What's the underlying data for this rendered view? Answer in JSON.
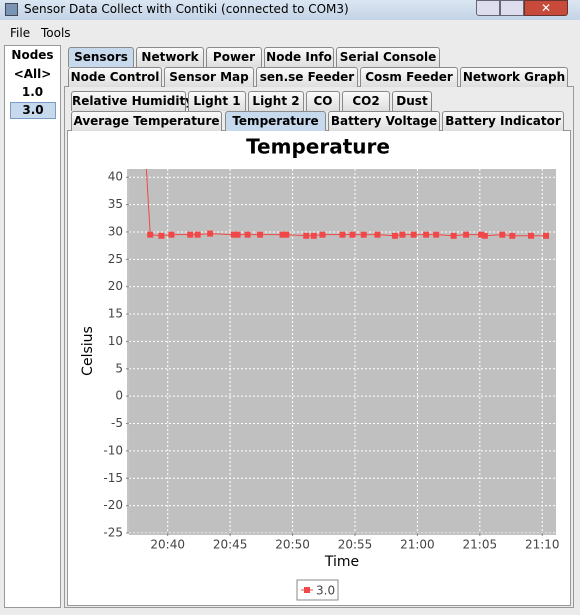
{
  "window": {
    "title": "Sensor Data Collect with Contiki (connected to COM3)"
  },
  "menu": [
    "File",
    "Tools"
  ],
  "nodes": {
    "header": "Nodes",
    "items": [
      "<All>",
      "1.0",
      "3.0"
    ]
  },
  "tabs": {
    "row1": [
      "Sensors",
      "Network",
      "Power",
      "Node Info",
      "Serial Console"
    ],
    "row2": [
      "Node Control",
      "Sensor Map",
      "sen.se Feeder",
      "Cosm Feeder",
      "Network Graph"
    ]
  },
  "subtabs": {
    "row1": [
      "Relative Humidity",
      "Light 1",
      "Light 2",
      "CO",
      "CO2",
      "Dust"
    ],
    "row2": [
      "Average Temperature",
      "Temperature",
      "Battery Voltage",
      "Battery Indicator"
    ]
  },
  "chart_data": {
    "type": "line",
    "title": "Temperature",
    "x_label": "Time",
    "y_label": "Celsius",
    "x": [
      1238.2,
      1238.6,
      1239.5,
      1240.3,
      1241.8,
      1242.4,
      1243.4,
      1245.3,
      1245.6,
      1246.4,
      1247.4,
      1249.2,
      1249.5,
      1251.1,
      1251.7,
      1252.4,
      1254.0,
      1254.8,
      1255.7,
      1256.8,
      1258.2,
      1258.8,
      1259.7,
      1260.7,
      1261.5,
      1262.9,
      1263.9,
      1265.1,
      1265.4,
      1266.8,
      1267.6,
      1269.1,
      1270.3
    ],
    "series": [
      {
        "name": "3.0",
        "color": "#f04848",
        "values": [
          45,
          29.5,
          29.3,
          29.5,
          29.5,
          29.5,
          29.7,
          29.5,
          29.5,
          29.5,
          29.5,
          29.5,
          29.5,
          29.3,
          29.3,
          29.5,
          29.5,
          29.5,
          29.5,
          29.5,
          29.3,
          29.5,
          29.5,
          29.5,
          29.5,
          29.3,
          29.5,
          29.5,
          29.3,
          29.5,
          29.3,
          29.3,
          29.3
        ]
      }
    ],
    "xlim": [
      1236.9,
      1271.1
    ],
    "xticks": [
      {
        "value": 1240,
        "label": "20:40"
      },
      {
        "value": 1245,
        "label": "20:45"
      },
      {
        "value": 1250,
        "label": "20:50"
      },
      {
        "value": 1255,
        "label": "20:55"
      },
      {
        "value": 1260,
        "label": "21:00"
      },
      {
        "value": 1265,
        "label": "21:05"
      },
      {
        "value": 1270,
        "label": "21:10"
      }
    ],
    "ylim": [
      -25,
      41.5
    ],
    "yticks": [
      -25,
      -20,
      -15,
      -10,
      -5,
      0,
      5,
      10,
      15,
      20,
      25,
      30,
      35,
      40
    ],
    "grid": true
  }
}
